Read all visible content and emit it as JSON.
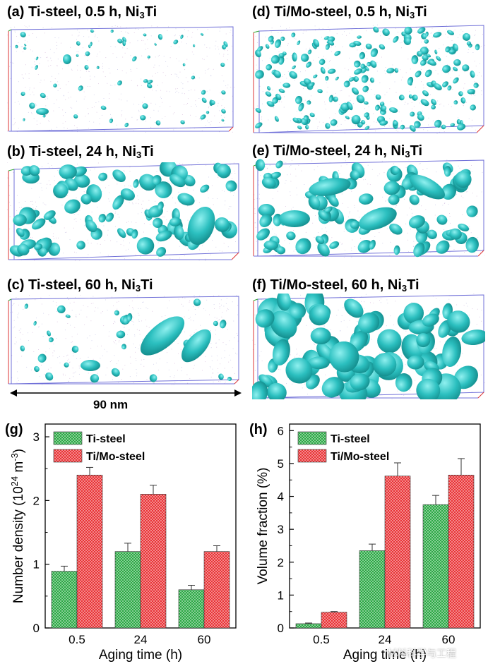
{
  "panels": [
    {
      "label": "(a)",
      "text": "Ti-steel, 0.5 h, Ni",
      "sub": "3",
      "tail": "Ti"
    },
    {
      "label": "(b)",
      "text": "Ti-steel, 24 h, Ni",
      "sub": "3",
      "tail": "Ti"
    },
    {
      "label": "(c)",
      "text": "Ti-steel, 60 h, Ni",
      "sub": "3",
      "tail": "Ti"
    },
    {
      "label": "(d)",
      "text": "Ti/Mo-steel, 0.5 h, Ni",
      "sub": "3",
      "tail": "Ti"
    },
    {
      "label": "(e)",
      "text": "Ti/Mo-steel, 24 h, Ni",
      "sub": "3",
      "tail": "Ti"
    },
    {
      "label": "(f)",
      "text": "Ti/Mo-steel, 60 h, Ni",
      "sub": "3",
      "tail": "Ti"
    }
  ],
  "scale_bar": {
    "label": "90 nm"
  },
  "colors": {
    "precipitate": "#2bbfbf",
    "precipitate_dark": "#138c8c",
    "ti_steel": "#1fa33a",
    "ti_mo_steel": "#e8262a",
    "box_red": "#d33",
    "box_blue": "#7070d8",
    "box_green": "#3a3"
  },
  "watermark": "材料科学与工程",
  "chart_data": [
    {
      "id": "g",
      "panel_label": "(g)",
      "type": "bar",
      "categories": [
        "0.5",
        "24",
        "60"
      ],
      "series": [
        {
          "name": "Ti-steel",
          "values": [
            0.89,
            1.2,
            0.6
          ],
          "errors": [
            0.08,
            0.13,
            0.07
          ]
        },
        {
          "name": "Ti/Mo-steel",
          "values": [
            2.4,
            2.1,
            1.2
          ],
          "errors": [
            0.12,
            0.14,
            0.09
          ]
        }
      ],
      "xlabel": "Aging time (h)",
      "ylabel_main": "Number density (10",
      "ylabel_sup1": "24",
      "ylabel_mid": " m",
      "ylabel_sup2": "-3",
      "ylabel_end": ")",
      "ylim": [
        0,
        3.2
      ],
      "yticks": [
        "0",
        "1",
        "2",
        "3"
      ],
      "legend_position": "top-left"
    },
    {
      "id": "h",
      "panel_label": "(h)",
      "type": "bar",
      "categories": [
        "0.5",
        "24",
        "60"
      ],
      "series": [
        {
          "name": "Ti-steel",
          "values": [
            0.13,
            2.35,
            3.75
          ],
          "errors": [
            0.02,
            0.2,
            0.28
          ]
        },
        {
          "name": "Ti/Mo-steel",
          "values": [
            0.48,
            4.62,
            4.65
          ],
          "errors": [
            0.02,
            0.4,
            0.5
          ]
        }
      ],
      "xlabel": "Aging time (h)",
      "ylabel": "Volume fraction (%)",
      "ylim": [
        0,
        6.2
      ],
      "yticks": [
        "0",
        "1",
        "2",
        "3",
        "4",
        "5",
        "6"
      ],
      "legend_position": "top-left"
    }
  ]
}
